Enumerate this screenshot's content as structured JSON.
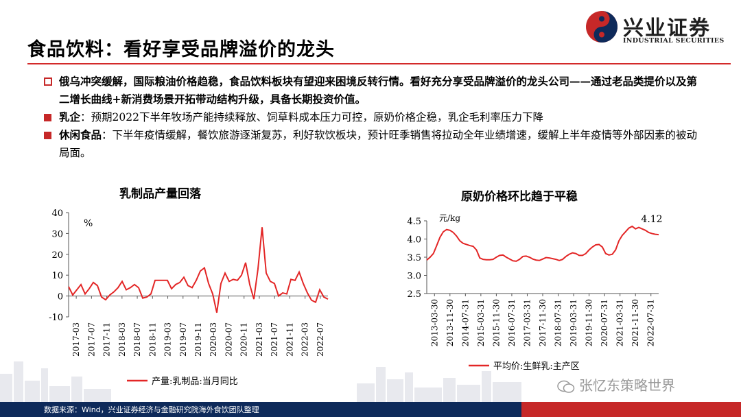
{
  "header": {
    "title": "食品饮料：看好享受品牌溢价的龙头",
    "logo_cn": "兴业证券",
    "logo_en": "INDUSTRIAL SECURITIES"
  },
  "bullets": {
    "b1_text": "俄乌冲突缓解，国际粮油价格趋稳，食品饮料板块有望迎来困境反转行情。看好充分享受品牌溢价的龙头公司——通过老品类提价以及第二增长曲线+新消费场景开拓带动结构升级，具备长期投资价值。",
    "b2_label": "乳企",
    "b2_text": "：预期2022下半年牧场产能持续释放、饲草料成本压力可控，原奶价格企稳，乳企毛利率压力下降",
    "b3_label": "休闲食品",
    "b3_text": "：下半年疫情缓解，餐饮旅游逐渐复苏，利好软饮板块，预计旺季销售将拉动全年业绩增速，缓解上半年疫情等外部因素的被动局面。"
  },
  "chart_data": [
    {
      "type": "line",
      "title": "乳制品产量回落",
      "unit": "%",
      "ylim": [
        -10,
        40
      ],
      "yticks": [
        "40",
        "30",
        "20",
        "10",
        "0",
        "-10"
      ],
      "xticks": [
        "2017-03",
        "2017-07",
        "2017-11",
        "2018-03",
        "2018-07",
        "2018-11",
        "2019-03",
        "2019-07",
        "2019-11",
        "2020-03",
        "2020-07",
        "2020-11",
        "2021-03",
        "2021-07",
        "2021-11",
        "2022-03",
        "2022-07"
      ],
      "legend": "产量:乳制品:当月同比",
      "color": "#e32626",
      "series": [
        {
          "values": [
            4.5,
            0.5,
            3,
            5.5,
            1,
            3.5,
            6.5,
            5,
            -0.5,
            -1.8,
            0.5,
            2,
            4,
            7,
            3,
            4,
            5.5,
            4,
            -1,
            -0.5,
            1,
            7.5,
            7.5,
            7.5,
            7.5,
            3.5,
            5.5,
            6.5,
            9,
            5,
            4,
            7.5,
            12,
            13.5,
            6,
            1,
            -8,
            6,
            11,
            7,
            8,
            7.5,
            10,
            16,
            5.5,
            -1.5,
            13,
            33,
            11,
            7,
            6,
            0,
            1.5,
            1,
            8,
            7.5,
            11.5,
            6,
            1.5,
            -2,
            -3,
            3,
            -0.5,
            -1.5
          ]
        }
      ]
    },
    {
      "type": "line",
      "title": "原奶价格环比趋于平稳",
      "unit": "元/kg",
      "ylim": [
        2.5,
        4.5
      ],
      "yticks": [
        "4.5",
        "4.0",
        "3.5",
        "3.0",
        "2.5"
      ],
      "xticks": [
        "2013-03-30",
        "2013-11-30",
        "2014-07-31",
        "2015-03-31",
        "2015-11-30",
        "2016-07-31",
        "2017-03-31",
        "2017-11-30",
        "2018-07-31",
        "2019-03-31",
        "2019-11-30",
        "2020-07-31",
        "2021-03-31",
        "2021-11-30",
        "2022-07-31"
      ],
      "last_value_label": "4.12",
      "legend": "平均价:生鲜乳:主产区",
      "color": "#e32626",
      "series": [
        {
          "values": [
            3.42,
            3.5,
            3.6,
            3.82,
            4.05,
            4.2,
            4.26,
            4.24,
            4.18,
            4.08,
            3.95,
            3.88,
            3.85,
            3.82,
            3.8,
            3.7,
            3.48,
            3.44,
            3.43,
            3.43,
            3.44,
            3.5,
            3.55,
            3.56,
            3.5,
            3.45,
            3.4,
            3.39,
            3.44,
            3.52,
            3.53,
            3.5,
            3.45,
            3.42,
            3.41,
            3.45,
            3.49,
            3.48,
            3.46,
            3.44,
            3.41,
            3.44,
            3.52,
            3.58,
            3.62,
            3.6,
            3.55,
            3.55,
            3.6,
            3.7,
            3.78,
            3.84,
            3.85,
            3.78,
            3.6,
            3.56,
            3.58,
            3.7,
            3.95,
            4.1,
            4.2,
            4.3,
            4.35,
            4.28,
            4.32,
            4.28,
            4.24,
            4.18,
            4.15,
            4.13,
            4.12
          ]
        }
      ]
    }
  ],
  "watermark": "张忆东策略世界",
  "footer": {
    "source": "数据来源：Wind，兴业证券经济与金融研究院海外食饮团队整理"
  }
}
